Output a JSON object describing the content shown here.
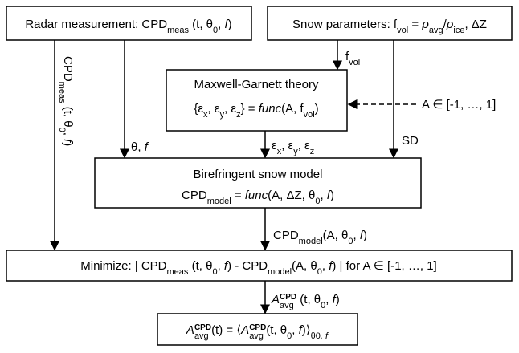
{
  "nodes": [
    {
      "lines": [
        [
          "Radar measurement: CPD",
          "meas",
          " (t, θ",
          "0",
          ", ",
          "f",
          ")"
        ]
      ]
    },
    {
      "lines": [
        [
          "Snow parameters: f",
          "vol",
          " = ",
          "ρ",
          "avg",
          "/",
          "ρ",
          "ice",
          ", ΔZ"
        ]
      ]
    },
    {
      "lines": [
        [
          "Maxwell-Garnett theory"
        ],
        [
          "{ε",
          "x",
          ", ε",
          "y",
          ", ε",
          "z",
          "} = ",
          "func",
          "(A, f",
          "vol",
          ")"
        ]
      ]
    },
    {
      "lines": [
        [
          "Birefringent snow model"
        ],
        [
          "CPD",
          "model",
          " = ",
          "func",
          "(A, ΔZ, θ",
          "0",
          ", ",
          "f",
          ")"
        ]
      ]
    },
    {
      "lines": [
        [
          "Minimize:  | CPD",
          "meas",
          " (t, θ",
          "0",
          ", ",
          "f",
          ") - CPD",
          "model",
          "(A, θ",
          "0",
          ", ",
          "f",
          ")  |  for A ∈ [-1, …, 1]"
        ]
      ]
    },
    {
      "lines": [
        [
          "A",
          "CPD",
          "avg",
          "(t) = ⟨",
          "A",
          "CPD",
          "avg",
          "(t, θ",
          "0",
          ", ",
          "f",
          ")⟩",
          "θ",
          "0",
          ", f"
        ]
      ]
    }
  ],
  "edges": [
    {
      "label": [
        "CPD",
        "meas",
        " (t, θ",
        "0",
        ", ",
        "f",
        ")"
      ]
    },
    {
      "label": [
        "θ, ",
        "f"
      ]
    },
    {
      "label": [
        "f",
        "vol"
      ]
    },
    {
      "label": [
        "SD"
      ]
    },
    {
      "label": [
        "A ∈ [-1, …, 1]"
      ]
    },
    {
      "label": [
        "ε",
        "x",
        ", ε",
        "y",
        ", ε",
        "z"
      ]
    },
    {
      "label": [
        "CPD",
        "model",
        "(A, θ",
        "0",
        ", ",
        "f",
        ")"
      ]
    },
    {
      "label": [
        "A",
        "CPD",
        "avg",
        " (t, θ",
        "0",
        ", ",
        "f",
        ")"
      ]
    }
  ]
}
